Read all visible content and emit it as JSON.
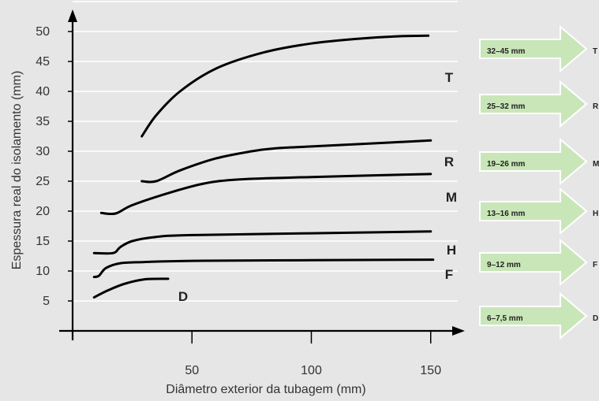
{
  "colors": {
    "background": "#e6e6e6",
    "gridline": "#ffffff",
    "curve": "#000000",
    "arrow_fill": "#c9e6b8",
    "arrow_stroke": "#ffffff"
  },
  "chart_data": {
    "type": "line",
    "xlabel": "Diâmetro exterior da tubagem (mm)",
    "ylabel": "Espessura real do isolamento (mm)",
    "xlim": [
      0,
      160
    ],
    "ylim": [
      0,
      55
    ],
    "xticks": [
      50,
      100,
      150
    ],
    "yticks": [
      5,
      10,
      15,
      20,
      25,
      30,
      35,
      40,
      45,
      50
    ],
    "grid": "horizontal",
    "series": [
      {
        "name": "T",
        "points": [
          [
            29,
            32.5
          ],
          [
            35,
            36
          ],
          [
            45,
            40
          ],
          [
            60,
            43.8
          ],
          [
            80,
            46.5
          ],
          [
            100,
            48
          ],
          [
            120,
            48.8
          ],
          [
            136,
            49.2
          ],
          [
            149,
            49.3
          ]
        ]
      },
      {
        "name": "R",
        "points": [
          [
            29,
            25
          ],
          [
            35,
            25
          ],
          [
            45,
            26.8
          ],
          [
            60,
            28.8
          ],
          [
            75,
            30
          ],
          [
            85,
            30.5
          ],
          [
            100,
            30.8
          ],
          [
            120,
            31.2
          ],
          [
            150,
            31.8
          ]
        ]
      },
      {
        "name": "M",
        "points": [
          [
            12,
            19.7
          ],
          [
            18,
            19.6
          ],
          [
            25,
            21
          ],
          [
            40,
            23
          ],
          [
            55,
            24.6
          ],
          [
            70,
            25.3
          ],
          [
            100,
            25.7
          ],
          [
            150,
            26.2
          ]
        ]
      },
      {
        "name": "H",
        "points": [
          [
            9,
            13
          ],
          [
            17,
            13
          ],
          [
            20,
            14
          ],
          [
            25,
            15
          ],
          [
            35,
            15.7
          ],
          [
            50,
            16
          ],
          [
            100,
            16.3
          ],
          [
            150,
            16.6
          ]
        ]
      },
      {
        "name": "F",
        "points": [
          [
            9,
            9
          ],
          [
            11,
            9.2
          ],
          [
            14,
            10.5
          ],
          [
            20,
            11.3
          ],
          [
            30,
            11.5
          ],
          [
            50,
            11.7
          ],
          [
            100,
            11.8
          ],
          [
            151,
            11.9
          ]
        ]
      },
      {
        "name": "D",
        "points": [
          [
            9,
            5.6
          ],
          [
            15,
            6.8
          ],
          [
            22,
            7.9
          ],
          [
            30,
            8.6
          ],
          [
            40,
            8.7
          ]
        ]
      }
    ],
    "arrows": [
      {
        "range": "32–45 mm",
        "code": "T"
      },
      {
        "range": "25–32 mm",
        "code": "R"
      },
      {
        "range": "19–26 mm",
        "code": "M"
      },
      {
        "range": "13–16 mm",
        "code": "H"
      },
      {
        "range": "9–12 mm",
        "code": "F"
      },
      {
        "range": "6–7,5 mm",
        "code": "D"
      }
    ]
  }
}
